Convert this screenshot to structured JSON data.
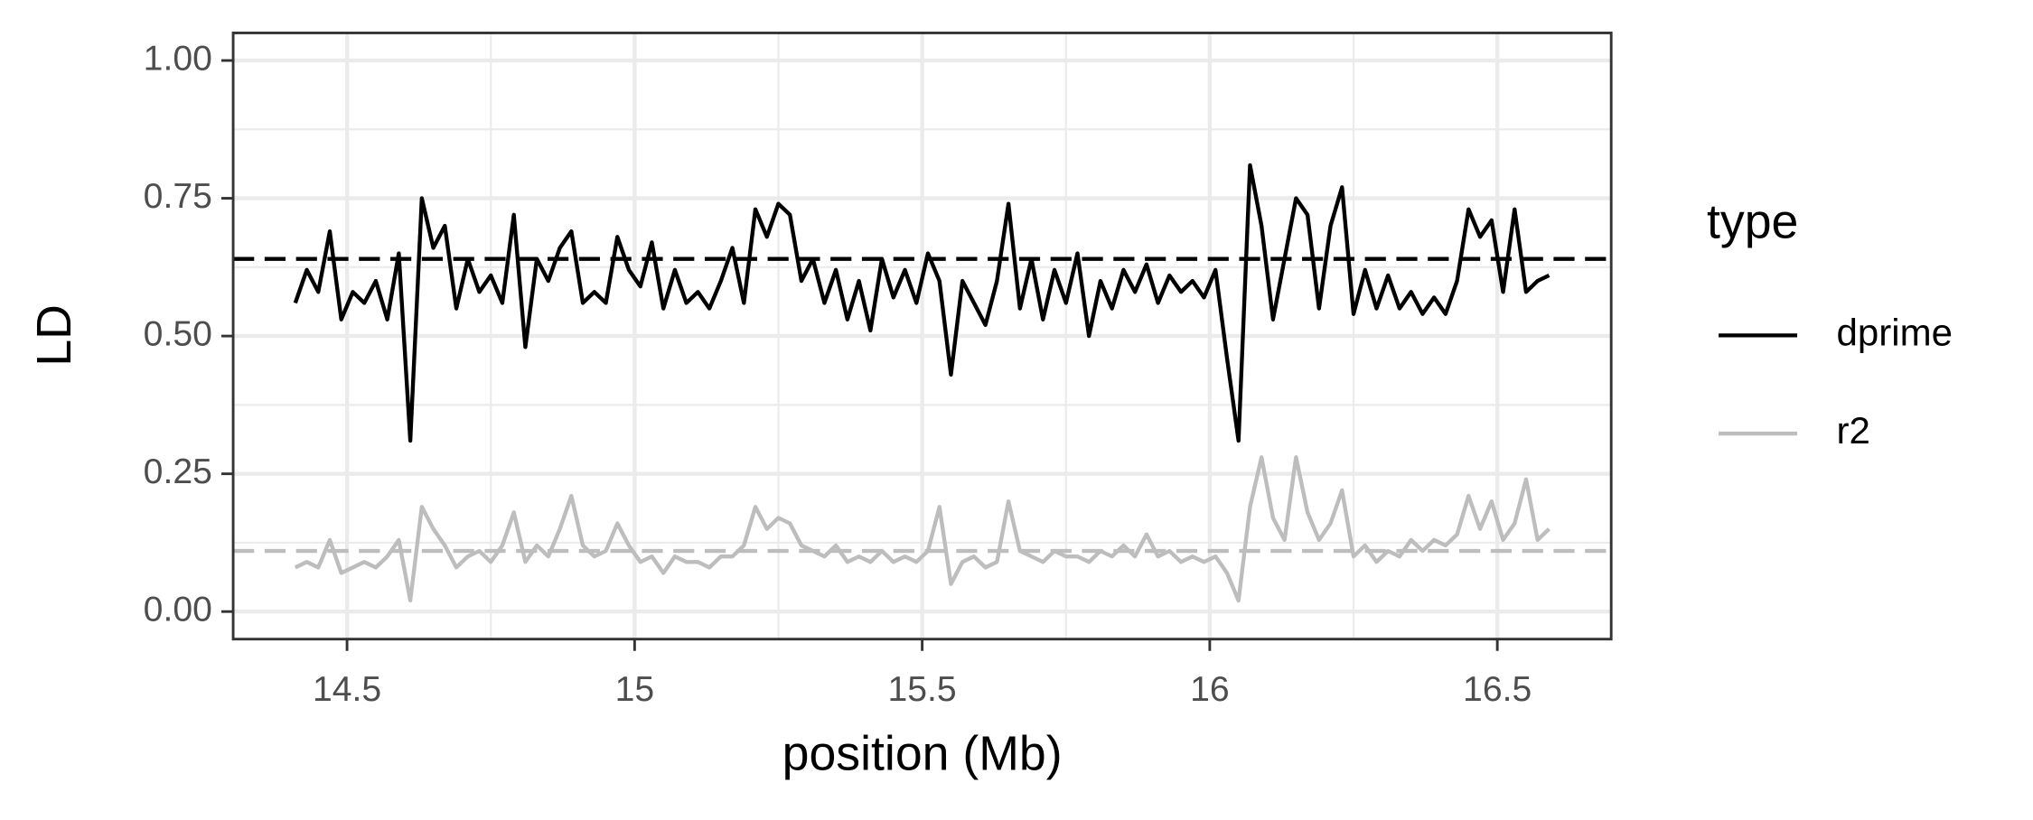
{
  "chart_data": {
    "type": "line",
    "x_label": "position (Mb)",
    "y_label": "LD",
    "legend_title": "type",
    "legend_position": "right",
    "grid": true,
    "xlim": [
      14.302,
      16.698
    ],
    "ylim": [
      -0.05,
      1.05
    ],
    "xticks": [
      14.5,
      15,
      15.5,
      16,
      16.5
    ],
    "x_minor_ticks": [
      14.75,
      15.25,
      15.75,
      16.25
    ],
    "yticks": [
      {
        "value": 0,
        "label": "0.00"
      },
      {
        "value": 0.25,
        "label": "0.25"
      },
      {
        "value": 0.5,
        "label": "0.50"
      },
      {
        "value": 0.75,
        "label": "0.75"
      },
      {
        "value": 1,
        "label": "1.00"
      }
    ],
    "y_minor_ticks": [
      0.125,
      0.375,
      0.625,
      0.875
    ],
    "reference_lines": [
      {
        "value": 0.64,
        "color": "#000000"
      },
      {
        "value": 0.11,
        "color": "#bdbdbd"
      }
    ],
    "x": [
      14.41,
      14.43,
      14.45,
      14.47,
      14.49,
      14.51,
      14.53,
      14.55,
      14.57,
      14.59,
      14.61,
      14.63,
      14.65,
      14.67,
      14.69,
      14.71,
      14.73,
      14.75,
      14.77,
      14.79,
      14.81,
      14.83,
      14.85,
      14.87,
      14.89,
      14.91,
      14.93,
      14.95,
      14.97,
      14.99,
      15.01,
      15.03,
      15.05,
      15.07,
      15.09,
      15.11,
      15.13,
      15.15,
      15.17,
      15.19,
      15.21,
      15.23,
      15.25,
      15.27,
      15.29,
      15.31,
      15.33,
      15.35,
      15.37,
      15.39,
      15.41,
      15.43,
      15.45,
      15.47,
      15.49,
      15.51,
      15.53,
      15.55,
      15.57,
      15.59,
      15.61,
      15.63,
      15.65,
      15.67,
      15.69,
      15.71,
      15.73,
      15.75,
      15.77,
      15.79,
      15.81,
      15.83,
      15.85,
      15.87,
      15.89,
      15.91,
      15.93,
      15.95,
      15.97,
      15.99,
      16.01,
      16.03,
      16.05,
      16.07,
      16.09,
      16.11,
      16.13,
      16.15,
      16.17,
      16.19,
      16.21,
      16.23,
      16.25,
      16.27,
      16.29,
      16.31,
      16.33,
      16.35,
      16.37,
      16.39,
      16.41,
      16.43,
      16.45,
      16.47,
      16.49,
      16.51,
      16.53,
      16.55,
      16.57,
      16.59
    ],
    "series": [
      {
        "name": "dprime",
        "color": "#000000",
        "values": [
          0.56,
          0.62,
          0.58,
          0.69,
          0.53,
          0.58,
          0.56,
          0.6,
          0.53,
          0.65,
          0.31,
          0.75,
          0.66,
          0.7,
          0.55,
          0.64,
          0.58,
          0.61,
          0.56,
          0.72,
          0.48,
          0.64,
          0.6,
          0.66,
          0.69,
          0.56,
          0.58,
          0.56,
          0.68,
          0.62,
          0.59,
          0.67,
          0.55,
          0.62,
          0.56,
          0.58,
          0.55,
          0.6,
          0.66,
          0.56,
          0.73,
          0.68,
          0.74,
          0.72,
          0.6,
          0.64,
          0.56,
          0.62,
          0.53,
          0.6,
          0.51,
          0.64,
          0.57,
          0.62,
          0.56,
          0.65,
          0.6,
          0.43,
          0.6,
          0.56,
          0.52,
          0.6,
          0.74,
          0.55,
          0.64,
          0.53,
          0.62,
          0.56,
          0.65,
          0.5,
          0.6,
          0.55,
          0.62,
          0.58,
          0.63,
          0.56,
          0.61,
          0.58,
          0.6,
          0.57,
          0.62,
          0.46,
          0.31,
          0.81,
          0.7,
          0.53,
          0.64,
          0.75,
          0.72,
          0.55,
          0.7,
          0.77,
          0.54,
          0.62,
          0.55,
          0.61,
          0.55,
          0.58,
          0.54,
          0.57,
          0.54,
          0.6,
          0.73,
          0.68,
          0.71,
          0.58,
          0.73,
          0.58,
          0.6,
          0.61
        ]
      },
      {
        "name": "r2",
        "color": "#bdbdbd",
        "values": [
          0.08,
          0.09,
          0.08,
          0.13,
          0.07,
          0.08,
          0.09,
          0.08,
          0.1,
          0.13,
          0.02,
          0.19,
          0.15,
          0.12,
          0.08,
          0.1,
          0.11,
          0.09,
          0.12,
          0.18,
          0.09,
          0.12,
          0.1,
          0.15,
          0.21,
          0.12,
          0.1,
          0.11,
          0.16,
          0.12,
          0.09,
          0.1,
          0.07,
          0.1,
          0.09,
          0.09,
          0.08,
          0.1,
          0.1,
          0.12,
          0.19,
          0.15,
          0.17,
          0.16,
          0.12,
          0.11,
          0.1,
          0.12,
          0.09,
          0.1,
          0.09,
          0.11,
          0.09,
          0.1,
          0.09,
          0.11,
          0.19,
          0.05,
          0.09,
          0.1,
          0.08,
          0.09,
          0.2,
          0.11,
          0.1,
          0.09,
          0.11,
          0.1,
          0.1,
          0.09,
          0.11,
          0.1,
          0.12,
          0.1,
          0.14,
          0.1,
          0.11,
          0.09,
          0.1,
          0.09,
          0.1,
          0.07,
          0.02,
          0.19,
          0.28,
          0.17,
          0.13,
          0.28,
          0.18,
          0.13,
          0.16,
          0.22,
          0.1,
          0.12,
          0.09,
          0.11,
          0.1,
          0.13,
          0.11,
          0.13,
          0.12,
          0.14,
          0.21,
          0.15,
          0.2,
          0.13,
          0.16,
          0.24,
          0.13,
          0.15
        ]
      }
    ]
  }
}
